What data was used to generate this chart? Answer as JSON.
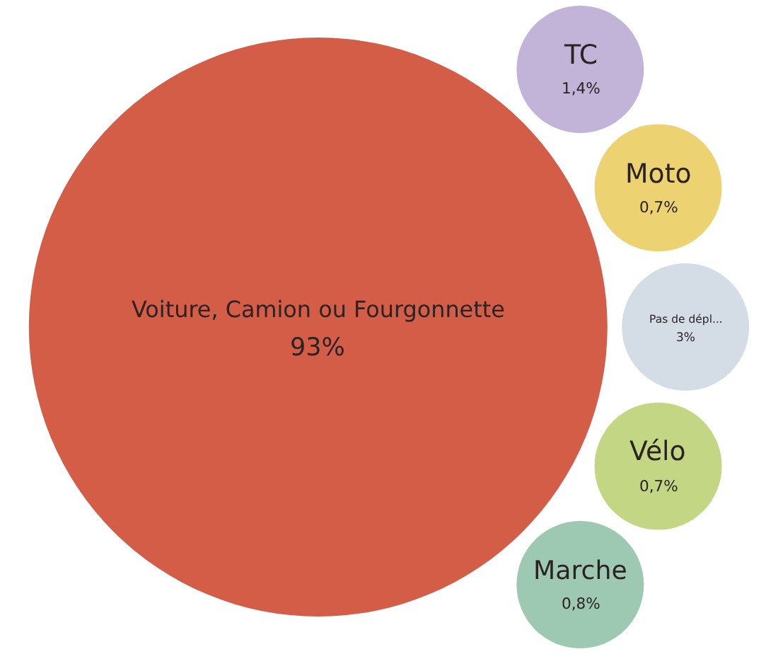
{
  "chart_data": {
    "type": "other",
    "categories": [
      "Voiture, Camion ou Fourgonnette",
      "TC",
      "Moto",
      "Pas de dépl...",
      "Vélo",
      "Marche"
    ],
    "values": [
      93,
      1.4,
      0.7,
      3,
      0.7,
      0.8
    ],
    "value_labels": [
      "93%",
      "1,4%",
      "0,7%",
      "3%",
      "0,7%",
      "0,8%"
    ],
    "colors": [
      "#d45d48",
      "#c2b4d8",
      "#ecd270",
      "#d4dde6",
      "#c3d683",
      "#9dc8b1"
    ]
  }
}
